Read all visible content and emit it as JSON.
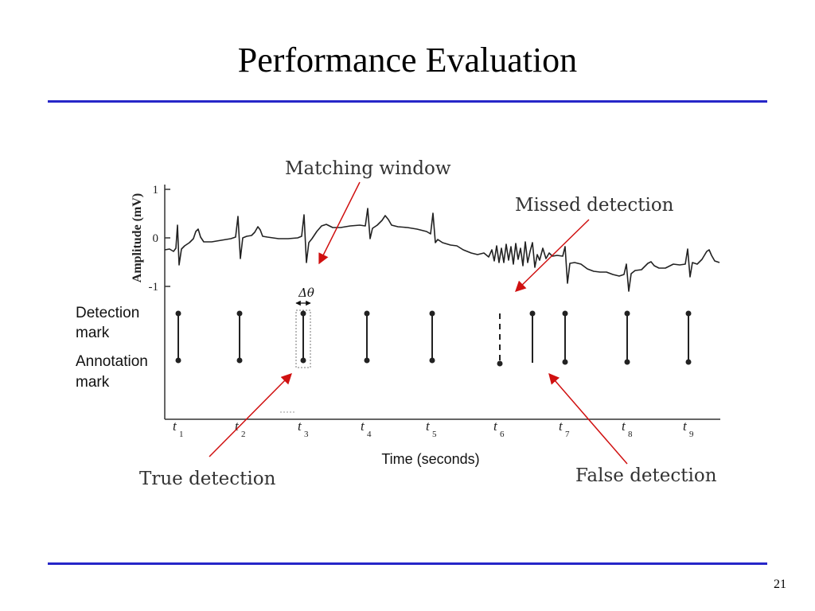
{
  "slide": {
    "title": "Performance Evaluation",
    "page_number": "21"
  },
  "figure": {
    "y_axis_label": "Amplitude (mV)",
    "y_ticks": [
      "1",
      "0",
      "-1"
    ],
    "x_axis_label": "Time (seconds)",
    "row_labels": {
      "detection": [
        "Detection",
        "mark"
      ],
      "annotation": [
        "Annotation",
        "mark"
      ]
    },
    "delta_label": "Δθ",
    "time_labels": [
      {
        "t": "t",
        "sub": "1"
      },
      {
        "t": "t",
        "sub": "2"
      },
      {
        "t": "t",
        "sub": "3"
      },
      {
        "t": "t",
        "sub": "4"
      },
      {
        "t": "t",
        "sub": "5"
      },
      {
        "t": "t",
        "sub": "6"
      },
      {
        "t": "t",
        "sub": "7"
      },
      {
        "t": "t",
        "sub": "8"
      },
      {
        "t": "t",
        "sub": "9"
      }
    ],
    "callouts": {
      "matching_window": "Matching window",
      "missed_detection": "Missed detection",
      "true_detection": "True detection",
      "false_detection": "False detection"
    },
    "colors": {
      "rule": "#2626c8",
      "arrow": "#d01010",
      "signal": "#222222"
    }
  }
}
